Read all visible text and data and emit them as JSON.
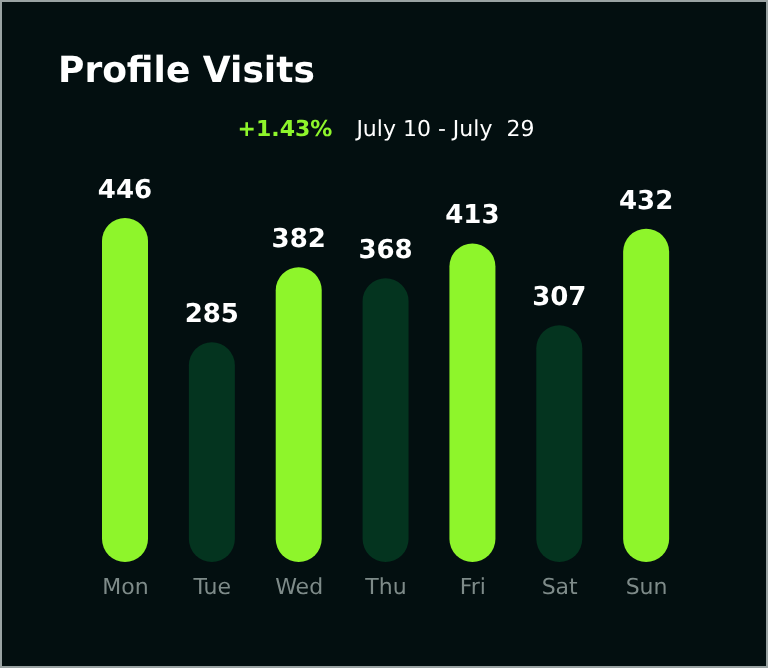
{
  "chart_data": {
    "type": "bar",
    "title": "Profile Visits",
    "subtitle": "July 10 - July  29",
    "annotations": [
      "+1.43%"
    ],
    "categories": [
      "Mon",
      "Tue",
      "Wed",
      "Thu",
      "Fri",
      "Sat",
      "Sun"
    ],
    "values": [
      446,
      285,
      382,
      368,
      413,
      307,
      432
    ],
    "colors": [
      "#8ef52b",
      "#04341f",
      "#8ef52b",
      "#04341f",
      "#8ef52b",
      "#04341f",
      "#8ef52b"
    ],
    "data_labels": true,
    "grid": false,
    "legend": false
  }
}
